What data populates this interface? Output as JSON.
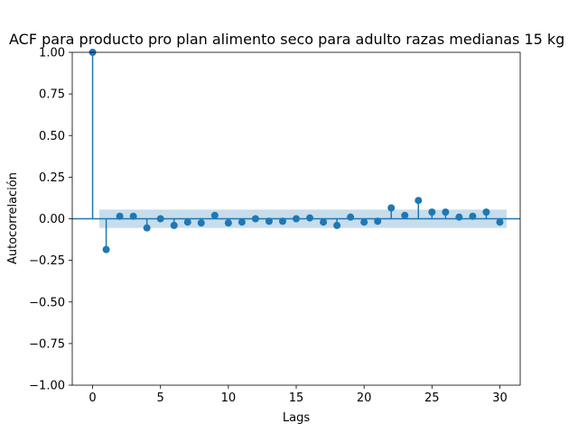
{
  "chart_data": {
    "type": "stem",
    "title": "ACF para producto pro plan alimento seco para adulto razas medianas 15 kg",
    "xlabel": "Lags",
    "ylabel": "Autocorrelación",
    "xlim": [
      -1.5,
      31.5
    ],
    "ylim": [
      -1.0,
      1.0
    ],
    "xticks": [
      0,
      5,
      10,
      15,
      20,
      25,
      30
    ],
    "yticks": [
      -1.0,
      -0.75,
      -0.5,
      -0.25,
      0.0,
      0.25,
      0.5,
      0.75,
      1.0
    ],
    "ytick_labels": [
      "−1.00",
      "−0.75",
      "−0.50",
      "−0.25",
      "0.00",
      "0.25",
      "0.50",
      "0.75",
      "1.00"
    ],
    "xtick_labels": [
      "0",
      "5",
      "10",
      "15",
      "20",
      "25",
      "30"
    ],
    "grid": false,
    "color": "#1f77b4",
    "confidence_color": "#1f77b4",
    "confidence_band": {
      "x_start": 0.5,
      "x_end": 30.5,
      "lower": -0.055,
      "upper": 0.055
    },
    "lags": [
      0,
      1,
      2,
      3,
      4,
      5,
      6,
      7,
      8,
      9,
      10,
      11,
      12,
      13,
      14,
      15,
      16,
      17,
      18,
      19,
      20,
      21,
      22,
      23,
      24,
      25,
      26,
      27,
      28,
      29,
      30
    ],
    "values": [
      1.0,
      -0.185,
      0.015,
      0.015,
      -0.055,
      0.0,
      -0.04,
      -0.02,
      -0.025,
      0.02,
      -0.025,
      -0.02,
      0.0,
      -0.015,
      -0.015,
      0.0,
      0.005,
      -0.02,
      -0.04,
      0.01,
      -0.02,
      -0.015,
      0.065,
      0.02,
      0.11,
      0.04,
      0.04,
      0.01,
      0.015,
      0.04,
      -0.02
    ]
  }
}
